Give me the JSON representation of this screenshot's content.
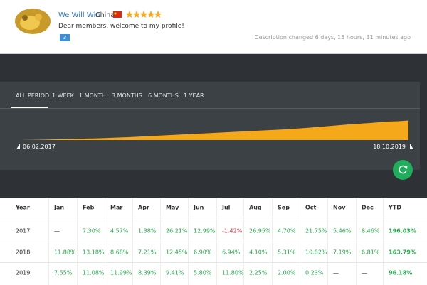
{
  "profile": {
    "name": "We Will Win",
    "country": "China",
    "greeting": "Dear members, welcome to my profile!",
    "badge": "3",
    "description_changed": "Description changed 6 days, 15 hours, 31 minutes ago"
  },
  "tabs": [
    "ALL PERIOD",
    "1 WEEK",
    "1 MONTH",
    "3 MONTHS",
    "6 MONTHS",
    "1 YEAR"
  ],
  "chart": {
    "start_date": "06.02.2017",
    "end_date": "18.10.2019"
  },
  "table": {
    "header": [
      "Year",
      "Jan",
      "Feb",
      "Mar",
      "Apr",
      "May",
      "Jun",
      "Jul",
      "Aug",
      "Sep",
      "Oct",
      "Nov",
      "Dec",
      "YTD"
    ],
    "rows": [
      [
        "2017",
        "—",
        "7.30%",
        "4.57%",
        "1.38%",
        "26.21%",
        "12.99%",
        "-1.42%",
        "26.95%",
        "4.70%",
        "21.75%",
        "5.46%",
        "8.46%",
        "196.03%"
      ],
      [
        "2018",
        "11.88%",
        "13.18%",
        "8.68%",
        "7.21%",
        "12.45%",
        "6.90%",
        "6.94%",
        "4.10%",
        "5.31%",
        "10.82%",
        "7.19%",
        "6.81%",
        "163.79%"
      ],
      [
        "2019",
        "7.55%",
        "11.08%",
        "11.99%",
        "8.39%",
        "9.41%",
        "5.80%",
        "11.80%",
        "2.25%",
        "2.00%",
        "0.23%",
        "—",
        "—",
        "96.18%"
      ]
    ]
  }
}
